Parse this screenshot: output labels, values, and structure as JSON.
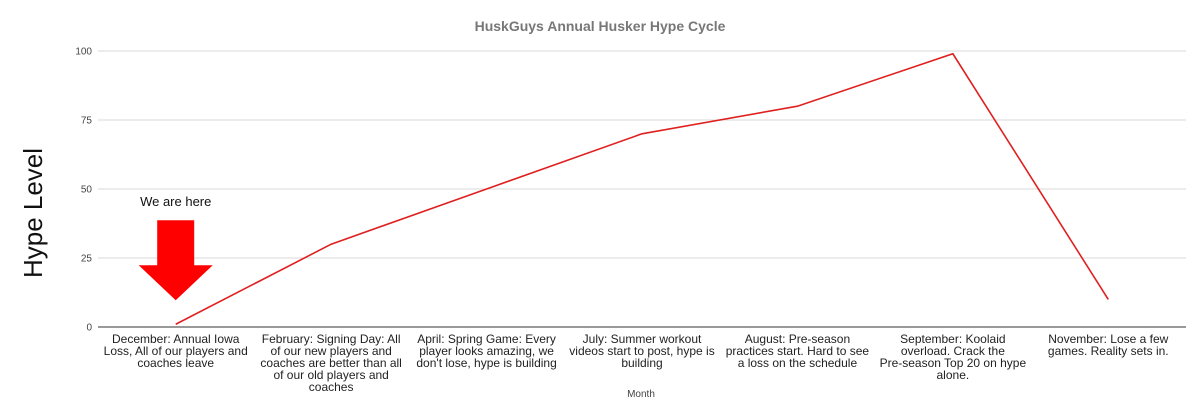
{
  "chart_data": {
    "type": "line",
    "title": "HuskGuys Annual Husker Hype Cycle",
    "xlabel": "Month",
    "ylabel": "Hype Level",
    "ylim": [
      0,
      100
    ],
    "yticks": [
      0,
      25,
      50,
      75,
      100
    ],
    "grid": true,
    "legend": "none",
    "categories": [
      "December: Annual Iowa Loss, All of our players and coaches leave",
      "February: Signing Day: All of our new players and coaches are better than all of our old players and coaches",
      "April: Spring Game: Every player looks amazing, we don't lose, hype is building",
      "July: Summer workout videos start to post, hype is building",
      "August: Pre-season practices start. Hard to see a loss on the schedule",
      "September: Koolaid overload. Crack the Pre-season Top 20 on hype alone.",
      "November: Lose a few games. Reality sets in."
    ],
    "series": [
      {
        "values": [
          1,
          30,
          50,
          70,
          80,
          99,
          10
        ],
        "color": "#e02020"
      }
    ],
    "annotation": {
      "text": "We are here",
      "arrow_color": "#ff0000",
      "target_category_index": 0
    }
  }
}
